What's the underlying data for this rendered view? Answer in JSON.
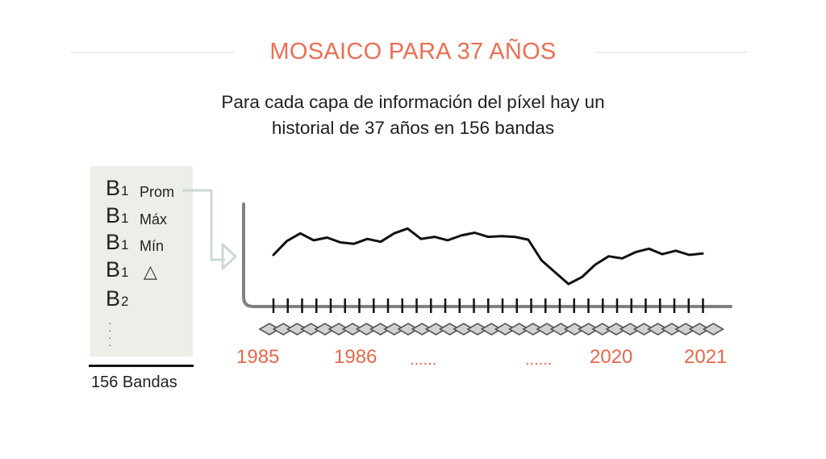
{
  "title": "MOSAICO PARA 37 AÑOS",
  "subtitle": "Para cada capa de información del píxel hay un historial de 37 años en 156 bandas",
  "colors": {
    "accent": "#e8674a",
    "title": "#ee6e52",
    "text": "#1f1f1f",
    "panel": "#eceee8",
    "axis": "#7d827d",
    "connector": "#ccd8d2",
    "chevron": "#cfd2cf"
  },
  "bands": [
    {
      "letter": "B",
      "sub": "1",
      "label": "Prom"
    },
    {
      "letter": "B",
      "sub": "1",
      "label": "Máx"
    },
    {
      "letter": "B",
      "sub": "1",
      "label": "Mín"
    },
    {
      "letter": "B",
      "sub": "1",
      "label": "△"
    },
    {
      "letter": "B",
      "sub": "2",
      "label": ""
    }
  ],
  "bands_caption": "156 Bandas",
  "timeline": {
    "labels": [
      "1985",
      "1986",
      "......",
      "......",
      "2020",
      "2021"
    ],
    "series_values": [
      0.0,
      0.4,
      0.62,
      0.42,
      0.5,
      0.36,
      0.32,
      0.46,
      0.38,
      0.62,
      0.76,
      0.46,
      0.52,
      0.42,
      0.56,
      0.64,
      0.52,
      0.54,
      0.52,
      0.44,
      -0.16,
      -0.5,
      -0.84,
      -0.64,
      -0.28,
      -0.04,
      -0.1,
      0.08,
      0.18,
      0.02,
      0.12,
      0.0,
      0.04
    ]
  }
}
